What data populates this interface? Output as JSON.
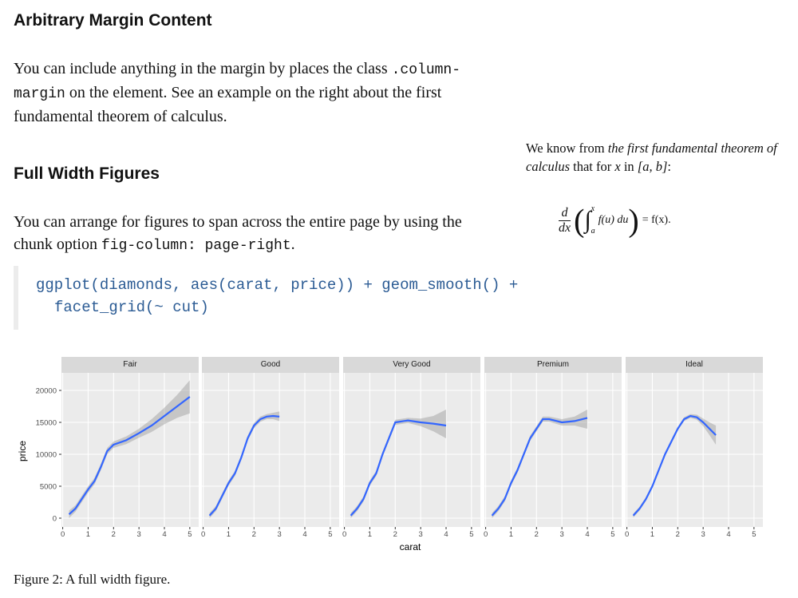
{
  "heading1": "Arbitrary Margin Content",
  "para1": {
    "t1": "You can include anything in the margin by places the class",
    "code": ".column-margin",
    "t2": "on the element. See an example on the right about the first fundamental theorem of calculus."
  },
  "heading2": "Full Width Figures",
  "para2": {
    "t1": "You can arrange for figures to span across the entire page by using the chunk option",
    "code": "fig-column: page-right",
    "t2": "."
  },
  "code_block": {
    "line1": "ggplot(diamonds, aes(carat, price)) + geom_smooth() +",
    "line2": "facet_grid(~ cut)"
  },
  "margin_note": {
    "t1": "We know from",
    "em": "the first fundamental theorem of calculus",
    "t2": "that for",
    "var": "x",
    "t3": "in",
    "interval": "[a, b]",
    "t4": ":"
  },
  "equation": {
    "d": "d",
    "dx": "dx",
    "integral": "∫",
    "upper": "x",
    "lower": "a",
    "integrand": "f(u) du",
    "rhs": "= f(x)."
  },
  "caption": "Figure 2: A full width figure.",
  "chart_data": {
    "type": "line",
    "xlabel": "carat",
    "ylabel": "price",
    "xlim": [
      -0.05,
      5.35
    ],
    "xticks": [
      0,
      1,
      2,
      3,
      4,
      5
    ],
    "ylim": [
      -1375,
      22750
    ],
    "yticks": [
      0,
      5000,
      10000,
      15000,
      20000
    ],
    "grid": true,
    "color": "#3366ff",
    "ribbon_color": "#999999",
    "series": [
      {
        "name": "Fair",
        "x": [
          0.25,
          0.5,
          0.75,
          1,
          1.25,
          1.5,
          1.75,
          2,
          2.5,
          3,
          3.5,
          4,
          4.5,
          5
        ],
        "values": [
          600,
          1500,
          3000,
          4500,
          5800,
          8000,
          10500,
          11500,
          12200,
          13300,
          14500,
          16000,
          17500,
          19000
        ],
        "upper": [
          1200,
          2000,
          3500,
          5000,
          6300,
          8500,
          11000,
          12000,
          12800,
          14000,
          15500,
          17300,
          19300,
          21600
        ],
        "lower": [
          0,
          1000,
          2500,
          4000,
          5300,
          7500,
          10000,
          11000,
          11600,
          12600,
          13500,
          14700,
          15700,
          16400
        ]
      },
      {
        "name": "Good",
        "x": [
          0.25,
          0.5,
          0.75,
          1,
          1.25,
          1.5,
          1.75,
          2,
          2.25,
          2.5,
          2.75,
          3
        ],
        "values": [
          400,
          1500,
          3500,
          5500,
          7000,
          9500,
          12500,
          14500,
          15500,
          15900,
          16000,
          15900
        ],
        "upper": [
          800,
          1900,
          3900,
          5900,
          7400,
          9900,
          12900,
          14900,
          15900,
          16300,
          16500,
          16700
        ],
        "lower": [
          0,
          1100,
          3100,
          5100,
          6600,
          9100,
          12100,
          14100,
          15100,
          15500,
          15500,
          15200
        ]
      },
      {
        "name": "Very Good",
        "x": [
          0.25,
          0.5,
          0.75,
          1,
          1.25,
          1.5,
          1.75,
          2,
          2.5,
          3,
          3.5,
          4
        ],
        "values": [
          400,
          1500,
          3000,
          5500,
          7000,
          10000,
          12500,
          15000,
          15300,
          15000,
          14800,
          14500
        ],
        "upper": [
          800,
          1900,
          3400,
          5900,
          7400,
          10400,
          12900,
          15400,
          15700,
          15600,
          16000,
          17000
        ],
        "lower": [
          0,
          1100,
          2600,
          5100,
          6600,
          9600,
          12100,
          14600,
          14900,
          14400,
          13600,
          12500
        ]
      },
      {
        "name": "Premium",
        "x": [
          0.25,
          0.5,
          0.75,
          1,
          1.25,
          1.5,
          1.75,
          2,
          2.25,
          2.5,
          3,
          3.5,
          4
        ],
        "values": [
          400,
          1500,
          3000,
          5500,
          7500,
          10000,
          12500,
          14000,
          15500,
          15500,
          15000,
          15200,
          15700
        ],
        "upper": [
          800,
          1900,
          3400,
          5900,
          7900,
          10400,
          12900,
          14400,
          15900,
          15900,
          15500,
          15900,
          17000
        ],
        "lower": [
          0,
          1100,
          2600,
          5100,
          7100,
          9600,
          12100,
          13600,
          15100,
          15100,
          14500,
          14500,
          14000
        ]
      },
      {
        "name": "Ideal",
        "x": [
          0.25,
          0.5,
          0.75,
          1,
          1.25,
          1.5,
          1.75,
          2,
          2.25,
          2.5,
          2.75,
          3,
          3.25,
          3.5
        ],
        "values": [
          400,
          1500,
          3000,
          5000,
          7500,
          10000,
          12000,
          14000,
          15500,
          16000,
          15800,
          15000,
          14000,
          13000
        ],
        "upper": [
          700,
          1800,
          3300,
          5300,
          7800,
          10300,
          12300,
          14300,
          15800,
          16300,
          16200,
          15600,
          15000,
          14500
        ],
        "lower": [
          100,
          1200,
          2700,
          4700,
          7200,
          9700,
          11700,
          13700,
          15200,
          15700,
          15400,
          14400,
          13000,
          11500
        ]
      }
    ]
  }
}
